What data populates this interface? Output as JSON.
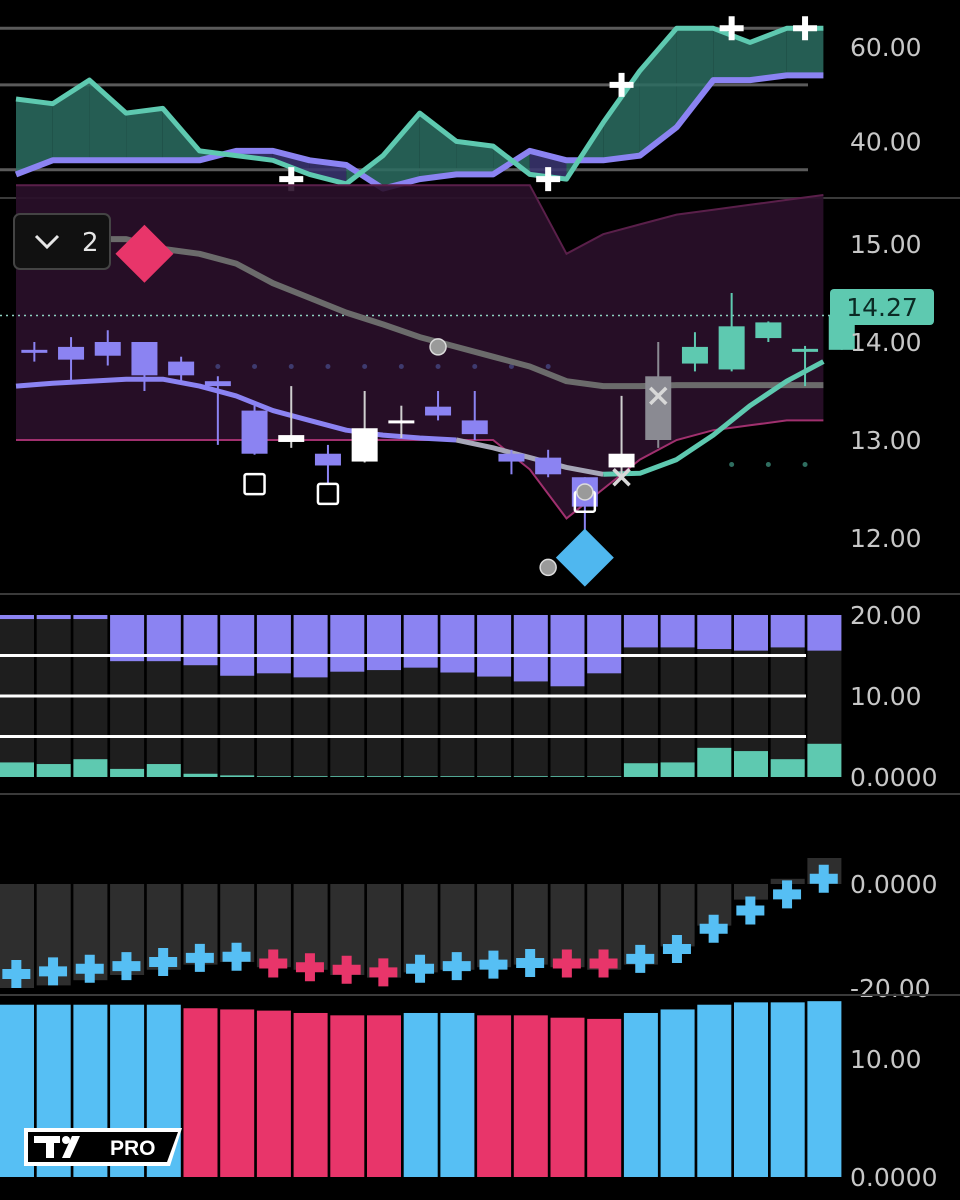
{
  "chart_data": [
    {
      "type": "line",
      "panel": "oscillator-top",
      "ylim": [
        28,
        70
      ],
      "y_ticks": [
        "60.00",
        "40.00"
      ],
      "hlines": [
        64,
        52,
        34
      ],
      "x": [
        0,
        1,
        2,
        3,
        4,
        5,
        6,
        7,
        8,
        9,
        10,
        11,
        12,
        13,
        14,
        15,
        16,
        17,
        18,
        19,
        20,
        21,
        22
      ],
      "series": [
        {
          "values": [
            49,
            48,
            53,
            46,
            47,
            38,
            37,
            36,
            33,
            31,
            37,
            46,
            40,
            39,
            33,
            32,
            44,
            55,
            64,
            64,
            61,
            64,
            64
          ]
        },
        {
          "values": [
            33,
            36,
            36,
            36,
            36,
            36,
            38,
            38,
            36,
            35,
            30,
            32,
            33,
            33,
            38,
            36,
            36,
            37,
            43,
            53,
            53,
            54,
            54
          ]
        }
      ],
      "cross_markers": [
        {
          "x": 7.5,
          "y": 32
        },
        {
          "x": 14.5,
          "y": 32
        },
        {
          "x": 16.5,
          "y": 52
        },
        {
          "x": 19.5,
          "y": 64
        },
        {
          "x": 21.5,
          "y": 64
        }
      ],
      "colors": {
        "up": "#5ec9b0",
        "down": "#8b83f2",
        "fill": "#2c6d61"
      }
    },
    {
      "type": "candlestick",
      "panel": "price",
      "ylim": [
        11.4,
        15.5
      ],
      "y_ticks": [
        "15.00",
        "14.00",
        "13.00",
        "12.00"
      ],
      "last_price": "14.27",
      "legend_badge": "2",
      "candles": [
        {
          "x": 0,
          "o": 13.9,
          "h": 14.0,
          "l": 13.8,
          "c": 13.92,
          "color": "purple"
        },
        {
          "x": 1,
          "o": 13.95,
          "h": 14.05,
          "l": 13.6,
          "c": 13.82,
          "color": "purple"
        },
        {
          "x": 2,
          "o": 14.0,
          "h": 14.12,
          "l": 13.76,
          "c": 13.86,
          "color": "purple"
        },
        {
          "x": 3,
          "o": 14.0,
          "h": 14.0,
          "l": 13.5,
          "c": 13.66,
          "color": "purple"
        },
        {
          "x": 4,
          "o": 13.8,
          "h": 13.85,
          "l": 13.6,
          "c": 13.66,
          "color": "purple"
        },
        {
          "x": 5,
          "o": 13.6,
          "h": 13.65,
          "l": 12.95,
          "c": 13.55,
          "color": "purple"
        },
        {
          "x": 6,
          "o": 13.3,
          "h": 13.35,
          "l": 12.85,
          "c": 12.86,
          "color": "purple"
        },
        {
          "x": 7,
          "o": 13.05,
          "h": 13.55,
          "l": 12.92,
          "c": 12.98,
          "color": "white"
        },
        {
          "x": 8,
          "o": 12.86,
          "h": 12.95,
          "l": 12.55,
          "c": 12.74,
          "color": "purple"
        },
        {
          "x": 9,
          "o": 13.12,
          "h": 13.5,
          "l": 12.77,
          "c": 12.78,
          "color": "white"
        },
        {
          "x": 10,
          "o": 13.2,
          "h": 13.35,
          "l": 13.02,
          "c": 13.2,
          "color": "white"
        },
        {
          "x": 11,
          "o": 13.34,
          "h": 13.5,
          "l": 13.2,
          "c": 13.25,
          "color": "purple"
        },
        {
          "x": 12,
          "o": 13.2,
          "h": 13.5,
          "l": 13.0,
          "c": 13.06,
          "color": "purple"
        },
        {
          "x": 13,
          "o": 12.86,
          "h": 12.9,
          "l": 12.65,
          "c": 12.78,
          "color": "purple"
        },
        {
          "x": 14,
          "o": 12.82,
          "h": 12.9,
          "l": 12.62,
          "c": 12.65,
          "color": "purple"
        },
        {
          "x": 15,
          "o": 12.62,
          "h": 12.62,
          "l": 12.02,
          "c": 12.32,
          "color": "purple"
        },
        {
          "x": 16,
          "o": 12.72,
          "h": 13.45,
          "l": 12.62,
          "c": 12.86,
          "color": "white"
        },
        {
          "x": 17,
          "o": 13.0,
          "h": 14.0,
          "l": 12.92,
          "c": 13.65,
          "color": "gray"
        },
        {
          "x": 18,
          "o": 13.78,
          "h": 14.1,
          "l": 13.7,
          "c": 13.95,
          "color": "teal"
        },
        {
          "x": 19,
          "o": 13.72,
          "h": 14.5,
          "l": 13.7,
          "c": 14.16,
          "color": "teal"
        },
        {
          "x": 20,
          "o": 14.04,
          "h": 14.21,
          "l": 14.0,
          "c": 14.2,
          "color": "teal"
        },
        {
          "x": 21,
          "o": 13.9,
          "h": 13.96,
          "l": 13.55,
          "c": 13.93,
          "color": "teal"
        },
        {
          "x": 22,
          "o": 13.92,
          "h": 14.3,
          "l": 13.92,
          "c": 14.27,
          "color": "teal"
        }
      ],
      "band_upper": [
        15.6,
        15.6,
        15.6,
        15.6,
        15.6,
        15.6,
        15.6,
        15.6,
        15.6,
        15.6,
        15.6,
        15.6,
        15.6,
        15.6,
        15.6,
        14.9,
        15.1,
        15.2,
        15.3,
        15.35,
        15.4,
        15.45,
        15.5
      ],
      "band_lower": [
        13.0,
        13.0,
        13.0,
        13.0,
        13.0,
        13.0,
        13.0,
        13.0,
        13.0,
        13.0,
        13.0,
        13.0,
        13.0,
        13.0,
        12.7,
        12.2,
        12.5,
        12.8,
        13.0,
        13.1,
        13.15,
        13.2,
        13.2
      ],
      "slow_ma": [
        15.05,
        15.05,
        15.05,
        15.05,
        14.95,
        14.9,
        14.8,
        14.6,
        14.45,
        14.3,
        14.18,
        14.05,
        13.95,
        13.85,
        13.75,
        13.6,
        13.55,
        13.55,
        13.56,
        13.56,
        13.56,
        13.56,
        13.56
      ],
      "fast_ma": [
        13.55,
        13.58,
        13.6,
        13.62,
        13.62,
        13.55,
        13.45,
        13.3,
        13.2,
        13.1,
        13.05,
        13.02,
        13.0,
        12.92,
        12.82,
        12.72,
        12.65,
        12.66,
        12.8,
        13.05,
        13.35,
        13.6,
        13.8
      ],
      "square_markers": [
        {
          "x": 6.5,
          "y": 12.55
        },
        {
          "x": 8.5,
          "y": 12.45
        },
        {
          "x": 15.5,
          "y": 12.37
        }
      ],
      "x_markers": [
        {
          "x": 16.5,
          "y": 12.62
        },
        {
          "x": 17.5,
          "y": 13.45
        }
      ],
      "circle_markers": [
        {
          "x": 11.5,
          "y": 13.95
        },
        {
          "x": 14.5,
          "y": 11.7
        },
        {
          "x": 15.5,
          "y": 12.47
        }
      ],
      "diamond_markers": [
        {
          "x": 3.5,
          "y": 14.9,
          "color": "#e8356a"
        },
        {
          "x": 15.5,
          "y": 11.8,
          "color": "#4fb7ef"
        }
      ],
      "dots_row_purple": {
        "y": 13.75,
        "from": 4,
        "to": 14
      },
      "dots_row_teal": {
        "y": 12.75,
        "from": 19,
        "to": 21
      }
    },
    {
      "type": "bar",
      "panel": "volume-split",
      "ylim": [
        0,
        20
      ],
      "y_ticks": [
        "20.00",
        "10.00",
        "0.0000"
      ],
      "hlines": [
        15,
        10,
        5
      ],
      "top_series": [
        19.5,
        19.5,
        19.5,
        14.3,
        14.3,
        13.8,
        12.5,
        12.8,
        12.3,
        13.0,
        13.2,
        13.5,
        12.9,
        12.4,
        11.8,
        11.2,
        12.8,
        16.0,
        16.0,
        15.8,
        15.6,
        16.0,
        15.6
      ],
      "bottom_series": [
        1.8,
        1.6,
        2.2,
        1.0,
        1.6,
        0.4,
        0.2,
        0.1,
        0.1,
        0.1,
        0.1,
        0.1,
        0.1,
        0.1,
        0.1,
        0.1,
        0.1,
        1.7,
        1.8,
        3.6,
        3.2,
        2.2,
        4.1
      ],
      "colors": {
        "top": "#8b83f2",
        "bottom": "#5ec9b0",
        "bg": "#1e1e1e"
      }
    },
    {
      "type": "bar",
      "panel": "momentum",
      "ylim": [
        -20,
        10
      ],
      "y_ticks": [
        "0.0000",
        "-20.00"
      ],
      "values": [
        -20,
        -19.5,
        -18.5,
        -17.5,
        -16.5,
        -15.5,
        -15,
        -16,
        -16.5,
        -17.5,
        -18,
        -17,
        -16.5,
        -16,
        -15.5,
        -16,
        -16.5,
        -15.5,
        -12,
        -8,
        -3,
        1,
        5
      ],
      "cross_values": [
        -17.3,
        -16.8,
        -16.3,
        -15.8,
        -15.0,
        -14.2,
        -14.0,
        -15.3,
        -16.0,
        -16.5,
        -17.0,
        -16.3,
        -15.8,
        -15.5,
        -15.2,
        -15.3,
        -15.3,
        -14.4,
        -12.5,
        -8.6,
        -5.1,
        -2.0,
        1.0
      ],
      "cross_colors": [
        "blue",
        "blue",
        "blue",
        "blue",
        "blue",
        "blue",
        "blue",
        "red",
        "red",
        "red",
        "red",
        "blue",
        "blue",
        "blue",
        "blue",
        "red",
        "red",
        "blue",
        "blue",
        "blue",
        "blue",
        "blue",
        "blue"
      ]
    },
    {
      "type": "bar",
      "panel": "strength",
      "ylim": [
        0,
        15
      ],
      "y_ticks": [
        "10.00",
        "0.0000"
      ],
      "values": [
        14.6,
        14.6,
        14.6,
        14.6,
        14.6,
        14.3,
        14.2,
        14.1,
        13.9,
        13.7,
        13.7,
        13.9,
        13.9,
        13.7,
        13.7,
        13.5,
        13.4,
        13.9,
        14.2,
        14.6,
        14.8,
        14.8,
        14.9
      ],
      "colors": [
        "blue",
        "blue",
        "blue",
        "blue",
        "blue",
        "red",
        "red",
        "red",
        "red",
        "red",
        "red",
        "blue",
        "blue",
        "red",
        "red",
        "red",
        "red",
        "blue",
        "blue",
        "blue",
        "blue",
        "blue",
        "blue"
      ],
      "palette": {
        "blue": "#56bff4",
        "red": "#e8356a"
      }
    }
  ],
  "branding": {
    "logo_text": "PRO"
  }
}
